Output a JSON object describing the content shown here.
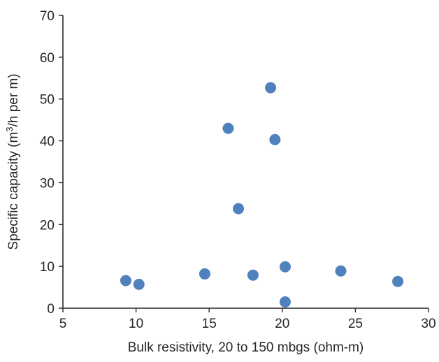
{
  "chart_data": {
    "type": "scatter",
    "title": "",
    "xlabel": "Bulk resistivity, 20 to 150 mbgs (ohm-m)",
    "ylabel": {
      "prefix": "Specific capacity (m",
      "superscript": "3",
      "suffix": "/h per m)"
    },
    "xlim": [
      5,
      30
    ],
    "ylim": [
      0,
      70
    ],
    "x_ticks": [
      "5",
      "10",
      "15",
      "20",
      "25",
      "30"
    ],
    "y_ticks": [
      "0",
      "10",
      "20",
      "30",
      "40",
      "50",
      "60",
      "70"
    ],
    "grid": false,
    "legend": "none",
    "marker_color": "#4f81bd",
    "points": [
      {
        "x": 9.3,
        "y": 6.6
      },
      {
        "x": 10.2,
        "y": 5.7
      },
      {
        "x": 14.7,
        "y": 8.2
      },
      {
        "x": 16.3,
        "y": 43.0
      },
      {
        "x": 17.0,
        "y": 23.8
      },
      {
        "x": 18.0,
        "y": 7.9
      },
      {
        "x": 19.2,
        "y": 52.7
      },
      {
        "x": 19.5,
        "y": 40.3
      },
      {
        "x": 20.2,
        "y": 9.9
      },
      {
        "x": 20.2,
        "y": 1.5
      },
      {
        "x": 24.0,
        "y": 8.9
      },
      {
        "x": 27.9,
        "y": 6.4
      }
    ]
  }
}
